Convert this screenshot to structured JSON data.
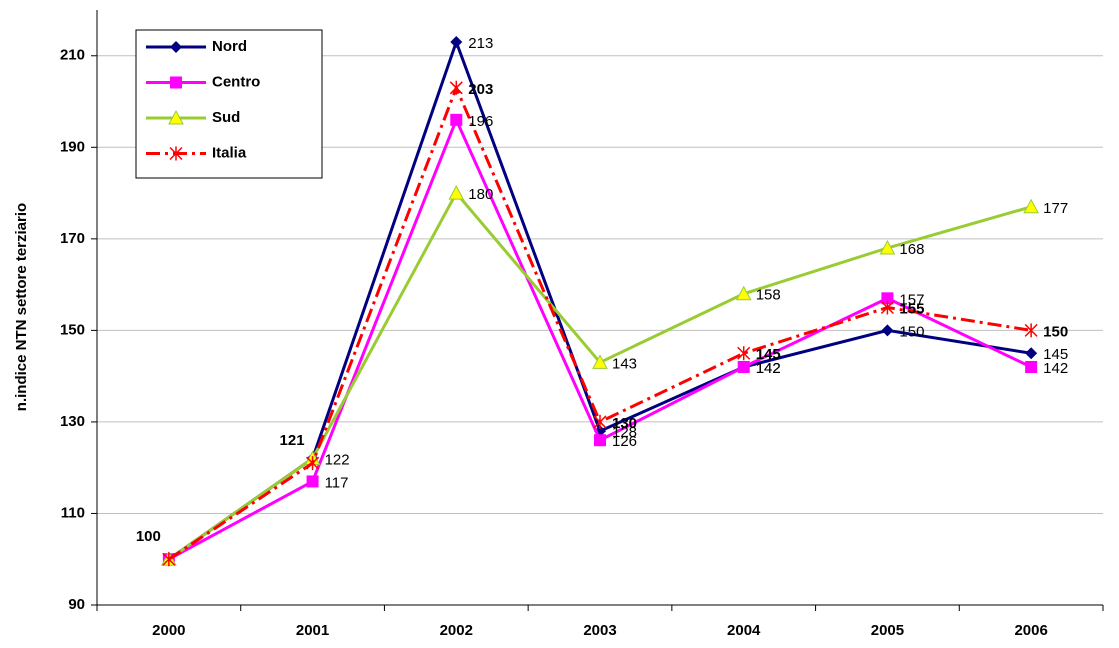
{
  "chart_data": {
    "type": "line",
    "y_label": "n.indice NTN settore terziario",
    "categories": [
      "2000",
      "2001",
      "2002",
      "2003",
      "2004",
      "2005",
      "2006"
    ],
    "series": [
      {
        "name": "Nord",
        "color": "#000080",
        "marker": "diamond",
        "marker_color": "#000080",
        "values": [
          100,
          122,
          213,
          128,
          142,
          150,
          145
        ],
        "value_labels": [
          null,
          "122",
          "213",
          "128",
          "142",
          "150",
          "145"
        ]
      },
      {
        "name": "Centro",
        "color": "#ff00ff",
        "marker": "square",
        "marker_color": "#ff00ff",
        "values": [
          100,
          117,
          196,
          126,
          142,
          157,
          142
        ],
        "value_labels": [
          null,
          "117",
          "196",
          "126",
          "142",
          "157",
          "142"
        ]
      },
      {
        "name": "Sud",
        "color": "#99cc33",
        "marker": "triangle",
        "marker_color": "#ffff00",
        "values": [
          100,
          122,
          180,
          143,
          158,
          168,
          177
        ],
        "value_labels": [
          null,
          null,
          "180",
          "143",
          "158",
          "168",
          "177"
        ]
      },
      {
        "name": "Italia",
        "color": "#ff0000",
        "marker": "asterisk",
        "marker_color": "#ff0000",
        "dashed": true,
        "bold_labels": true,
        "values": [
          100,
          121,
          203,
          130,
          145,
          155,
          150
        ],
        "value_labels": [
          "100",
          "121",
          "203",
          "130",
          "145",
          "155",
          "150"
        ]
      }
    ],
    "ylim": [
      90,
      220
    ],
    "yticks": [
      90,
      110,
      130,
      150,
      170,
      190,
      210
    ],
    "grid": true,
    "legend": "upper left"
  }
}
